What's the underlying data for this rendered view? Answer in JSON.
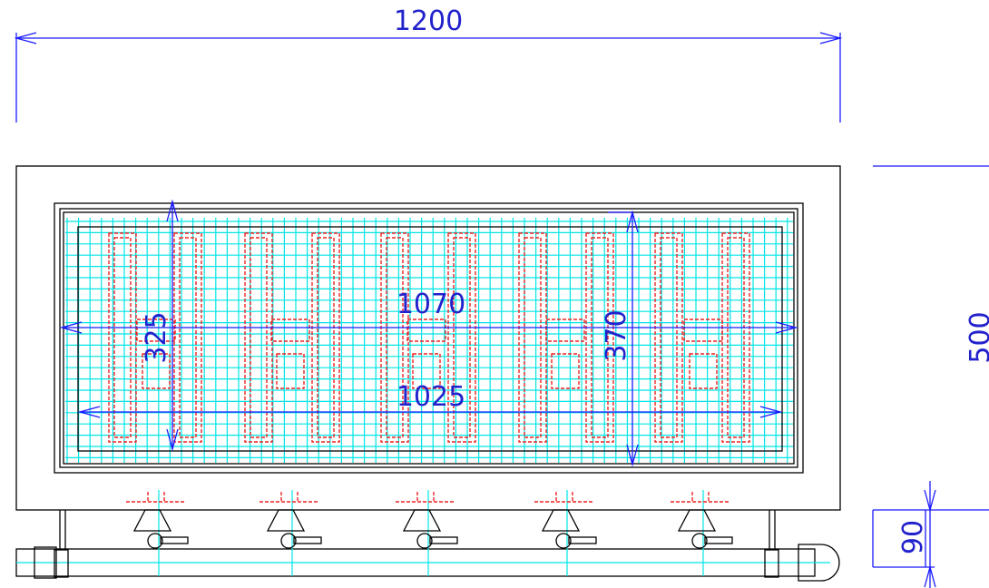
{
  "dimensions": {
    "overall_width": "1200",
    "frame_width": "1070",
    "inner_width": "1025",
    "strip_height": "325",
    "frame_height": "370",
    "overall_height": "500",
    "leg_height": "90"
  }
}
